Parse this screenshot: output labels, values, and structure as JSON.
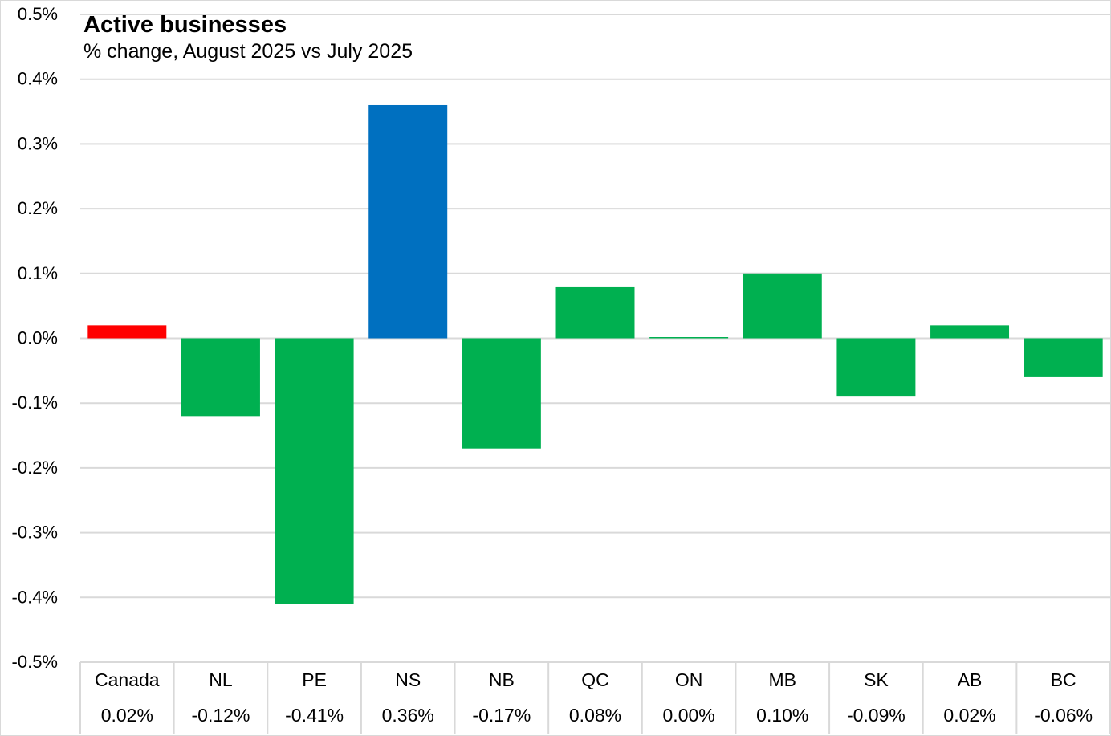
{
  "chart_data": {
    "type": "bar",
    "title": "Active businesses",
    "subtitle": "% change, August 2025 vs July 2025",
    "xlabel": "",
    "ylabel": "",
    "categories": [
      "Canada",
      "NL",
      "PE",
      "NS",
      "NB",
      "QC",
      "ON",
      "MB",
      "SK",
      "AB",
      "BC"
    ],
    "values": [
      0.02,
      -0.12,
      -0.41,
      0.36,
      -0.17,
      0.08,
      0.0,
      0.1,
      -0.09,
      0.02,
      -0.06
    ],
    "value_labels": [
      "0.02%",
      "-0.12%",
      "-0.41%",
      "0.36%",
      "-0.17%",
      "0.08%",
      "0.00%",
      "0.10%",
      "-0.09%",
      "0.02%",
      "-0.06%"
    ],
    "bar_colors": [
      "#ff0000",
      "#00b050",
      "#00b050",
      "#0070c0",
      "#00b050",
      "#00b050",
      "#00b050",
      "#00b050",
      "#00b050",
      "#00b050",
      "#00b050"
    ],
    "ylim": [
      -0.5,
      0.5
    ],
    "yticks": [
      0.5,
      0.4,
      0.3,
      0.2,
      0.1,
      0.0,
      -0.1,
      -0.2,
      -0.3,
      -0.4,
      -0.5
    ],
    "ytick_labels": [
      "0.5%",
      "0.4%",
      "0.3%",
      "0.2%",
      "0.1%",
      "0.0%",
      "-0.1%",
      "-0.2%",
      "-0.3%",
      "-0.4%",
      "-0.5%"
    ],
    "grid": true,
    "legend": "none",
    "data_table_below": true
  }
}
